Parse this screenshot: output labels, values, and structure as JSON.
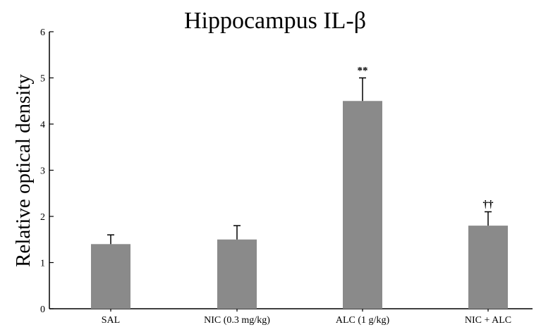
{
  "chart_data": {
    "type": "bar",
    "title": "Hippocampus IL-β",
    "xlabel": "",
    "ylabel": "Relative optical density",
    "categories": [
      "SAL",
      "NIC (0.3 mg/kg)",
      "ALC (1 g/kg)",
      "NIC + ALC"
    ],
    "values": [
      1.4,
      1.5,
      4.5,
      1.8
    ],
    "errors": [
      0.2,
      0.3,
      0.5,
      0.3
    ],
    "annotations": [
      "",
      "",
      "**",
      "††"
    ],
    "ylim": [
      0,
      6
    ],
    "yticks": [
      0,
      1,
      2,
      3,
      4,
      5,
      6
    ],
    "grid": false,
    "bar_color": "#8a8a8a"
  }
}
